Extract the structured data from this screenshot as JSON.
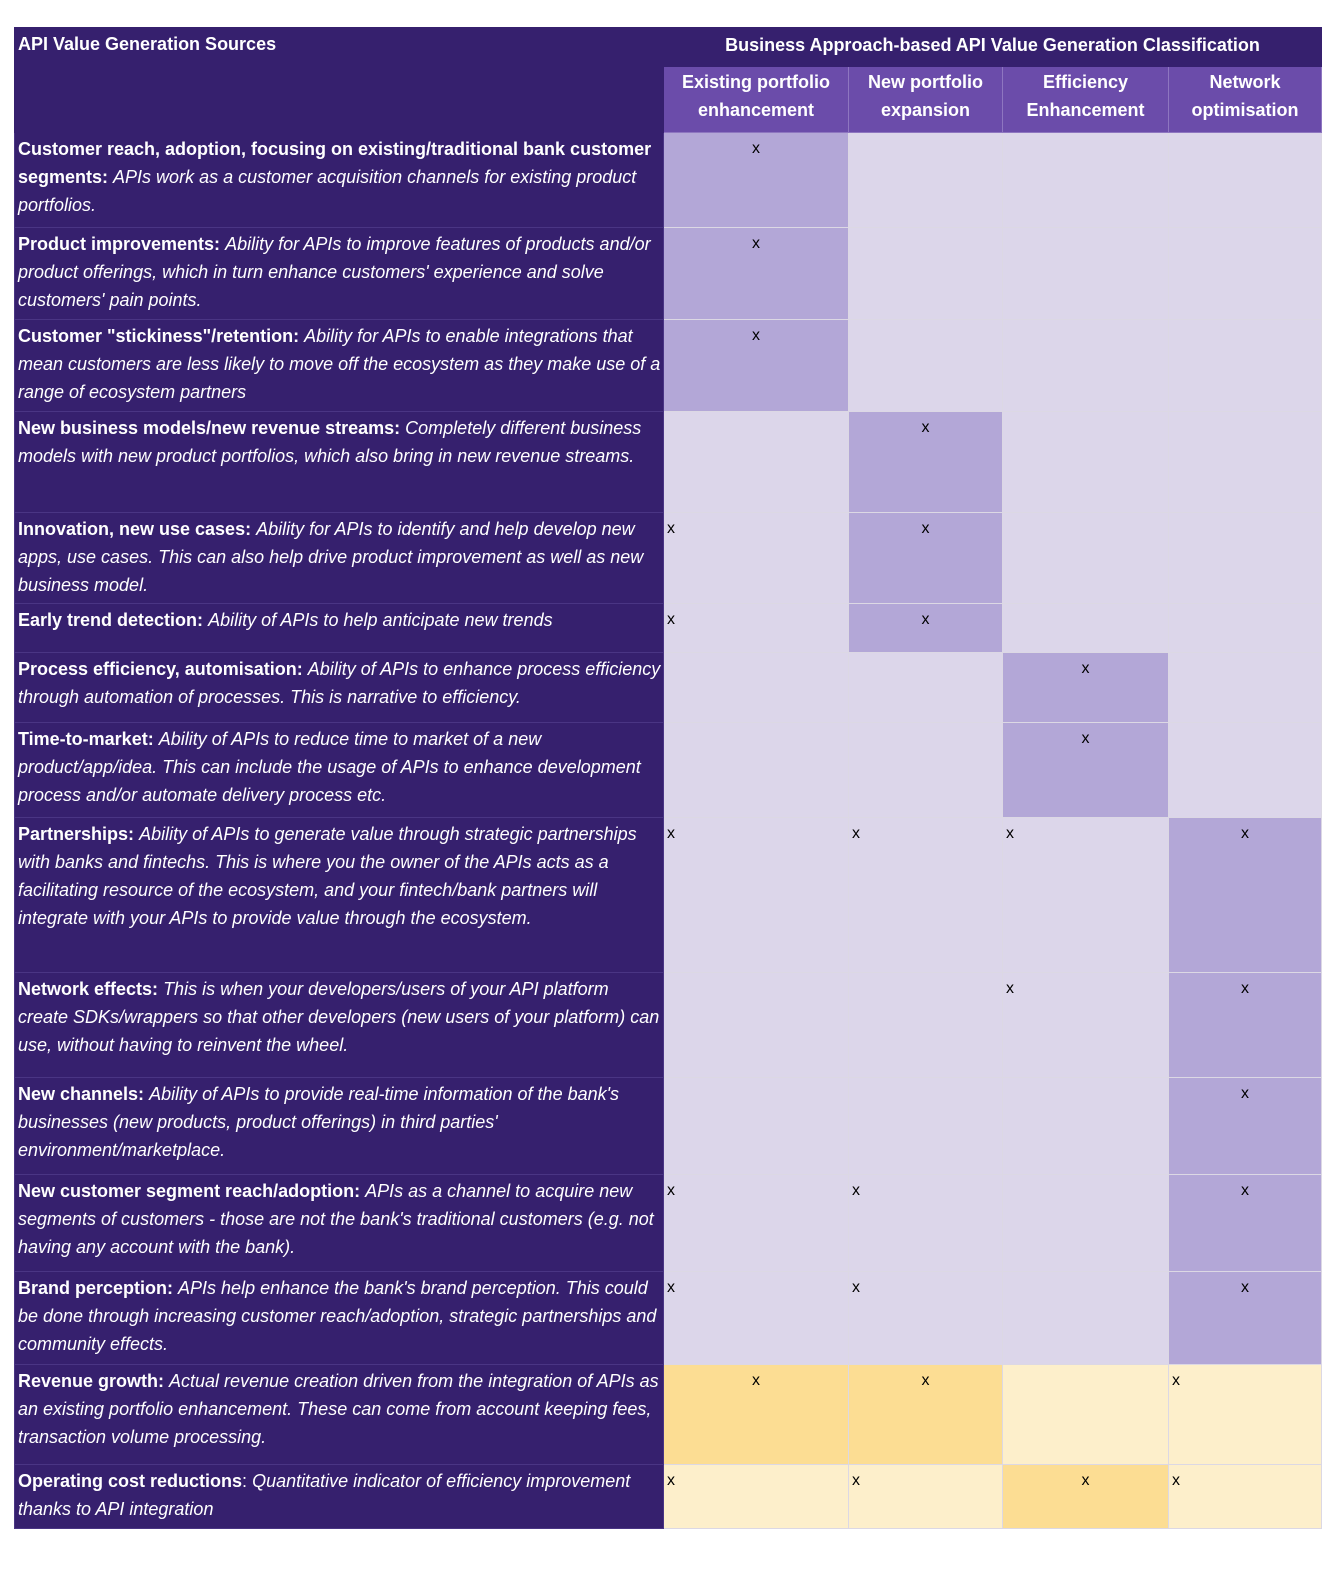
{
  "header": {
    "corner_title": "API Value Generation Sources",
    "classification_title": "Business Approach-based API Value Generation Classification",
    "columns": [
      {
        "line1": "Existing portfolio",
        "line2": "enhancement"
      },
      {
        "line1": "New portfolio",
        "line2": "expansion"
      },
      {
        "line1": "Efficiency",
        "line2": "Enhancement"
      },
      {
        "line1": "Network",
        "line2": "optimisation"
      }
    ]
  },
  "colors": {
    "header_bg": "#36206e",
    "subheader_bg": "#6b4caa",
    "cell_light": "#dcd6ea",
    "cell_dark": "#b3a7d7",
    "cell_yellow_light": "#fdefcb",
    "cell_yellow_dark": "#fcdd93"
  },
  "rows": [
    {
      "title": "Customer reach, adoption, focusing on existing/traditional bank customer segments:",
      "desc": "APIs work as a customer acquisition channels for existing product portfolios.",
      "cells": [
        {
          "mark": "x",
          "shade": "dark",
          "align": "center"
        },
        {
          "mark": "",
          "shade": "light"
        },
        {
          "mark": "",
          "shade": "light"
        },
        {
          "mark": "",
          "shade": "light"
        }
      ]
    },
    {
      "title": "Product improvements:",
      "desc": "Ability for APIs to improve features of products and/or product offerings, which in turn enhance customers' experience and solve customers' pain points.",
      "cells": [
        {
          "mark": "x",
          "shade": "dark",
          "align": "center"
        },
        {
          "mark": "",
          "shade": "light"
        },
        {
          "mark": "",
          "shade": "light"
        },
        {
          "mark": "",
          "shade": "light"
        }
      ]
    },
    {
      "title": "Customer \"stickiness\"/retention:",
      "desc": "Ability for APIs to enable integrations that mean customers are less likely to move off the ecosystem as they make use of a range of ecosystem partners",
      "cells": [
        {
          "mark": "x",
          "shade": "dark",
          "align": "center"
        },
        {
          "mark": "",
          "shade": "light"
        },
        {
          "mark": "",
          "shade": "light"
        },
        {
          "mark": "",
          "shade": "light"
        }
      ]
    },
    {
      "title": "New business models/new revenue streams:",
      "desc": "Completely different business models with new product portfolios, which also bring in new revenue streams.",
      "cells": [
        {
          "mark": "",
          "shade": "light"
        },
        {
          "mark": "x",
          "shade": "dark",
          "align": "center"
        },
        {
          "mark": "",
          "shade": "light"
        },
        {
          "mark": "",
          "shade": "light"
        }
      ]
    },
    {
      "title": "Innovation, new use cases:",
      "desc": "Ability for APIs to identify and help develop new apps, use cases. This can also help drive product improvement as well as new business model.",
      "cells": [
        {
          "mark": "x",
          "shade": "light",
          "align": "left"
        },
        {
          "mark": "x",
          "shade": "dark",
          "align": "center"
        },
        {
          "mark": "",
          "shade": "light"
        },
        {
          "mark": "",
          "shade": "light"
        }
      ]
    },
    {
      "title": "Early trend detection:",
      "desc": "Ability of APIs to help anticipate new trends",
      "cells": [
        {
          "mark": "x",
          "shade": "light",
          "align": "left"
        },
        {
          "mark": "x",
          "shade": "dark",
          "align": "center"
        },
        {
          "mark": "",
          "shade": "light"
        },
        {
          "mark": "",
          "shade": "light"
        }
      ]
    },
    {
      "title": "Process efficiency, automisation:",
      "desc": "Ability of APIs to enhance process efficiency through automation of processes. This is narrative to efficiency.",
      "cells": [
        {
          "mark": "",
          "shade": "light"
        },
        {
          "mark": "",
          "shade": "light"
        },
        {
          "mark": "x",
          "shade": "dark",
          "align": "center"
        },
        {
          "mark": "",
          "shade": "light"
        }
      ]
    },
    {
      "title": "Time-to-market:",
      "desc": "Ability of APIs to reduce time to market of a new product/app/idea. This can include the usage of APIs to enhance development process and/or automate delivery process etc.",
      "cells": [
        {
          "mark": "",
          "shade": "light"
        },
        {
          "mark": "",
          "shade": "light"
        },
        {
          "mark": "x",
          "shade": "dark",
          "align": "center"
        },
        {
          "mark": "",
          "shade": "light"
        }
      ]
    },
    {
      "title": "Partnerships:",
      "desc": "Ability of APIs to generate value through strategic partnerships with banks and fintechs. This is where you the owner of the APIs acts as a facilitating resource of the ecosystem, and your fintech/bank partners will integrate with your APIs to provide value through the ecosystem.",
      "cells": [
        {
          "mark": "x",
          "shade": "light",
          "align": "left"
        },
        {
          "mark": "x",
          "shade": "light",
          "align": "left"
        },
        {
          "mark": "x",
          "shade": "light",
          "align": "left"
        },
        {
          "mark": "x",
          "shade": "dark",
          "align": "center"
        }
      ]
    },
    {
      "title": "Network effects:",
      "desc": "This is when your developers/users of your API platform create SDKs/wrappers so that other developers (new users of your platform) can use, without having to reinvent the wheel.",
      "cells": [
        {
          "mark": "",
          "shade": "light"
        },
        {
          "mark": "",
          "shade": "light"
        },
        {
          "mark": "x",
          "shade": "light",
          "align": "left"
        },
        {
          "mark": "x",
          "shade": "dark",
          "align": "center"
        }
      ]
    },
    {
      "title": "New channels:",
      "desc": "Ability of APIs to provide real-time information of the bank's businesses (new products, product offerings) in third parties' environment/marketplace.",
      "cells": [
        {
          "mark": "",
          "shade": "light"
        },
        {
          "mark": "",
          "shade": "light"
        },
        {
          "mark": "",
          "shade": "light"
        },
        {
          "mark": "x",
          "shade": "dark",
          "align": "center"
        }
      ]
    },
    {
      "title": "New customer segment reach/adoption:",
      "desc": "APIs as a channel to acquire new segments of customers - those are not the bank's traditional customers (e.g. not having any account with the bank).",
      "cells": [
        {
          "mark": "x",
          "shade": "light",
          "align": "left"
        },
        {
          "mark": "x",
          "shade": "light",
          "align": "left"
        },
        {
          "mark": "",
          "shade": "light"
        },
        {
          "mark": "x",
          "shade": "dark",
          "align": "center"
        }
      ]
    },
    {
      "title": "Brand perception:",
      "desc": "APIs help enhance the bank's brand perception. This could be done through increasing customer reach/adoption, strategic partnerships and community effects.",
      "cells": [
        {
          "mark": "x",
          "shade": "light",
          "align": "left"
        },
        {
          "mark": "x",
          "shade": "light",
          "align": "left"
        },
        {
          "mark": "",
          "shade": "light"
        },
        {
          "mark": "x",
          "shade": "dark",
          "align": "center"
        }
      ]
    },
    {
      "title": "Revenue growth:",
      "desc": "Actual revenue creation driven from the integration of APIs as an existing portfolio enhancement. These can come from account keeping fees, transaction volume processing.",
      "cells": [
        {
          "mark": "x",
          "shade": "ydark",
          "align": "center"
        },
        {
          "mark": "x",
          "shade": "ydark",
          "align": "center"
        },
        {
          "mark": "",
          "shade": "ylight"
        },
        {
          "mark": "x",
          "shade": "ylight",
          "align": "left"
        }
      ]
    },
    {
      "title": "Operating cost reductions",
      "title_suffix": ":",
      "desc": "Quantitative indicator of efficiency improvement thanks to API integration",
      "cells": [
        {
          "mark": "x",
          "shade": "ylight",
          "align": "left"
        },
        {
          "mark": "x",
          "shade": "ylight",
          "align": "left"
        },
        {
          "mark": "x",
          "shade": "ydark",
          "align": "center"
        },
        {
          "mark": "x",
          "shade": "ylight",
          "align": "left"
        }
      ]
    }
  ]
}
